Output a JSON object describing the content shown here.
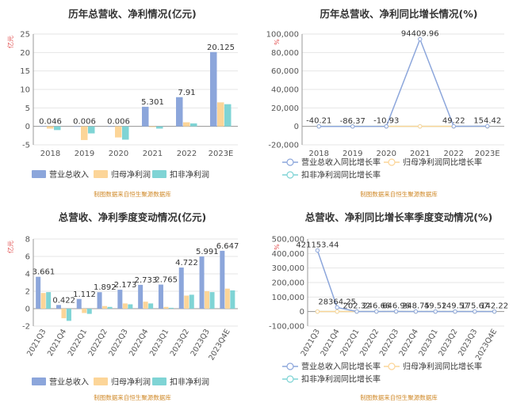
{
  "source_note": "制图数据来自恒生聚源数据库",
  "colors": {
    "revenue": "#8CA6DB",
    "net_profit": "#FCD598",
    "deducted_profit": "#7FD4D5",
    "axis": "#555555",
    "grid": "#e6e6e6",
    "source": "#d08a2a",
    "unit": "#e04a4a"
  },
  "chart_data": [
    {
      "type": "bar",
      "title": "历年总营收、净利情况(亿元)",
      "unit_label": "亿元",
      "categories": [
        "2018",
        "2019",
        "2020",
        "2021",
        "2022",
        "2023E"
      ],
      "series": [
        {
          "name": "营业总收入",
          "values": [
            0.046,
            0.006,
            0.006,
            5.301,
            7.91,
            20.125
          ]
        },
        {
          "name": "归母净利润",
          "values": [
            -0.6,
            -3.7,
            -3.0,
            -0.2,
            1.1,
            6.5
          ]
        },
        {
          "name": "扣非净利润",
          "values": [
            -1.0,
            -1.9,
            -3.6,
            -0.6,
            0.8,
            6.0
          ]
        }
      ],
      "data_labels": [
        "0.046",
        "0.006",
        "0.006",
        "5.301",
        "7.91",
        "20.125"
      ],
      "ylim": [
        -5,
        25
      ],
      "yticks": [
        -5,
        0,
        5,
        10,
        15,
        20,
        25
      ],
      "grid": true,
      "legend": "bottom"
    },
    {
      "type": "line",
      "title": "历年总营收、净利同比增长情况(%)",
      "unit_label": "%",
      "categories": [
        "2018",
        "2019",
        "2020",
        "2021",
        "2022",
        "2023E"
      ],
      "series": [
        {
          "name": "营业总收入同比增长率",
          "values": [
            -40.21,
            -86.37,
            -10.93,
            94409.96,
            49.22,
            154.42
          ]
        },
        {
          "name": "归母净利润同比增长率",
          "values": [
            0,
            0,
            0,
            0,
            0,
            0
          ]
        },
        {
          "name": "扣非净利润同比增长率",
          "values": [
            0,
            0,
            0,
            0,
            0,
            0
          ]
        }
      ],
      "data_labels": [
        "-40.21",
        "-86.37",
        "-10.93",
        "94409.96",
        "49.22",
        "154.42"
      ],
      "ylim": [
        -20000,
        100000
      ],
      "yticks": [
        -20000,
        0,
        20000,
        40000,
        60000,
        80000,
        100000
      ],
      "ytick_labels": [
        "-20,000",
        "0",
        "20,000",
        "40,000",
        "60,000",
        "80,000",
        "100,000"
      ],
      "grid": true,
      "legend": "bottom"
    },
    {
      "type": "bar",
      "title": "总营收、净利季度变动情况(亿元)",
      "unit_label": "亿元",
      "categories": [
        "2021Q3",
        "2021Q4",
        "2022Q1",
        "2022Q2",
        "2022Q3",
        "2022Q4",
        "2023Q1",
        "2023Q2",
        "2023Q3",
        "2023Q4E"
      ],
      "series": [
        {
          "name": "营业总收入",
          "values": [
            3.661,
            0.422,
            1.112,
            1.892,
            2.173,
            2.733,
            2.765,
            4.722,
            5.991,
            6.647
          ]
        },
        {
          "name": "归母净利润",
          "values": [
            1.8,
            -1.1,
            -0.5,
            0.3,
            0.6,
            0.8,
            0.2,
            1.5,
            2.0,
            2.3
          ]
        },
        {
          "name": "扣非净利润",
          "values": [
            1.9,
            -1.4,
            -0.6,
            0.2,
            0.5,
            0.6,
            0.1,
            1.6,
            1.9,
            2.1
          ]
        }
      ],
      "data_labels": [
        "3.661",
        "0.422",
        "1.112",
        "1.892",
        "2.173",
        "2.733",
        "2.765",
        "4.722",
        "5.991",
        "6.647"
      ],
      "ylim": [
        -2,
        8
      ],
      "yticks": [
        -2,
        0,
        2,
        4,
        6,
        8
      ],
      "grid": true,
      "legend": "bottom"
    },
    {
      "type": "line",
      "title": "总营收、净利同比增长率季度变动情况(%)",
      "unit_label": "%",
      "categories": [
        "2021Q3",
        "2021Q4",
        "2022Q1",
        "2022Q2",
        "2022Q3",
        "2022Q4",
        "2023Q1",
        "2023Q2",
        "2023Q3",
        "2023Q4E"
      ],
      "series": [
        {
          "name": "营业总收入同比增长率",
          "values": [
            421153.44,
            28364.25,
            202.32,
            246.66,
            646.96,
            248.75,
            49.52,
            149.57,
            175.67,
            142.22
          ]
        },
        {
          "name": "归母净利润同比增长率",
          "values": [
            0,
            0,
            0,
            0,
            0,
            0,
            0,
            0,
            0,
            0
          ]
        },
        {
          "name": "扣非净利润同比增长率",
          "values": [
            0,
            0,
            0,
            0,
            0,
            0,
            0,
            0,
            0,
            0
          ]
        }
      ],
      "data_labels": [
        "421153.44",
        "28364.25",
        "202.32",
        "246.66",
        "646.96",
        "248.75",
        "49.52",
        "149.57",
        "175.67",
        "142.22"
      ],
      "ylim": [
        -100000,
        500000
      ],
      "yticks": [
        -100000,
        0,
        100000,
        200000,
        300000,
        400000,
        500000
      ],
      "ytick_labels": [
        "-100,000",
        "0",
        "100,000",
        "200,000",
        "300,000",
        "400,000",
        "500,000"
      ],
      "grid": true,
      "legend": "bottom"
    }
  ]
}
